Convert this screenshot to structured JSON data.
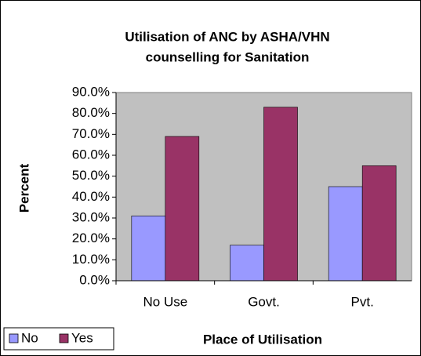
{
  "chart_data": {
    "type": "bar",
    "title": "Utilisation of ANC by ASHA/VHN",
    "subtitle": "counselling for Sanitation",
    "x_label": "Place of Utilisation",
    "y_label": "Percent",
    "categories": [
      "No Use",
      "Govt.",
      "Pvt."
    ],
    "series": [
      {
        "name": "No",
        "color": "#9999ff",
        "values": [
          31,
          17,
          45
        ]
      },
      {
        "name": "Yes",
        "color": "#993366",
        "values": [
          69,
          83,
          55
        ]
      }
    ],
    "ylim": [
      0,
      90
    ],
    "yticks": [
      {
        "value": 0,
        "label": "0.0%"
      },
      {
        "value": 10,
        "label": "10.0%"
      },
      {
        "value": 20,
        "label": "20.0%"
      },
      {
        "value": 30,
        "label": "30.0%"
      },
      {
        "value": 40,
        "label": "40.0%"
      },
      {
        "value": 50,
        "label": "50.0%"
      },
      {
        "value": 60,
        "label": "60.0%"
      },
      {
        "value": 70,
        "label": "70.0%"
      },
      {
        "value": 80,
        "label": "80.0%"
      },
      {
        "value": 90,
        "label": "90.0%"
      }
    ],
    "plot_background": "#c0c0c0",
    "legend": "bottom-left"
  }
}
